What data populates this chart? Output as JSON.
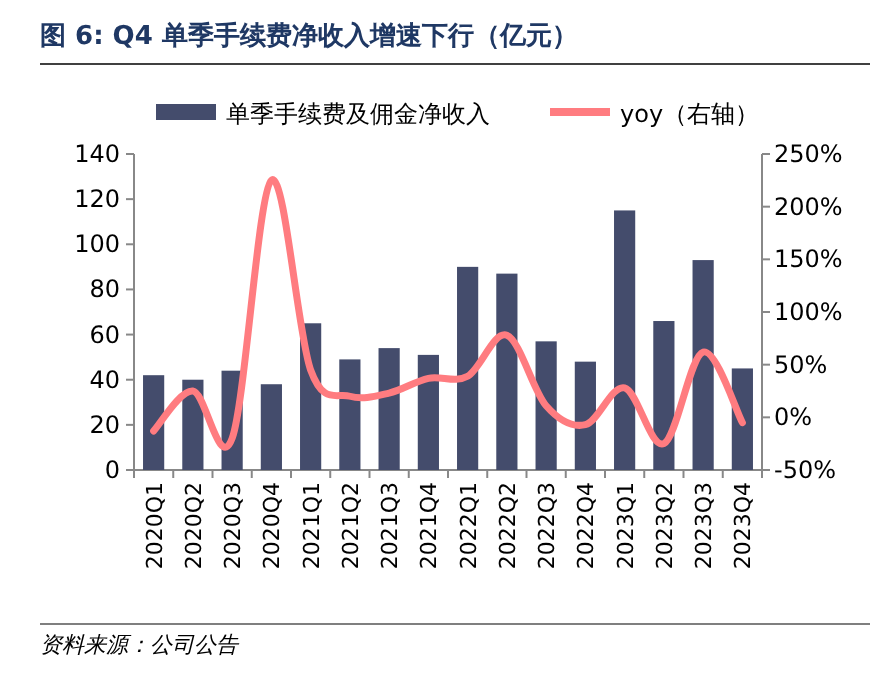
{
  "chart_data": {
    "type": "bar",
    "title": "图 6:  Q4 单季手续费净收入增速下行（亿元）",
    "categories": [
      "2020Q1",
      "2020Q2",
      "2020Q3",
      "2020Q4",
      "2021Q1",
      "2021Q2",
      "2021Q3",
      "2021Q4",
      "2022Q1",
      "2022Q2",
      "2022Q3",
      "2022Q4",
      "2023Q1",
      "2023Q2",
      "2023Q3",
      "2023Q4"
    ],
    "series": [
      {
        "name": "单季手续费及佣金净收入",
        "color": "#444c6c",
        "values": [
          42,
          40,
          44,
          38,
          65,
          49,
          54,
          51,
          90,
          87,
          57,
          48,
          115,
          66,
          93,
          45
        ]
      },
      {
        "name": "yoy（右轴）",
        "type": "line",
        "axis": "y2",
        "color": "#ff7c80",
        "values": [
          -13,
          25,
          -20,
          225,
          45,
          20,
          23,
          37,
          39,
          78,
          11,
          -7,
          28,
          -25,
          62,
          -5
        ]
      }
    ],
    "ylim": [
      0,
      140
    ],
    "yticks": [
      0,
      20,
      40,
      60,
      80,
      100,
      120,
      140
    ],
    "y2lim": [
      -50,
      250
    ],
    "y2ticks": [
      {
        "value": -50,
        "label": "-50%"
      },
      {
        "value": 0,
        "label": "0%"
      },
      {
        "value": 50,
        "label": "50%"
      },
      {
        "value": 100,
        "label": "100%"
      },
      {
        "value": 150,
        "label": "150%"
      },
      {
        "value": 200,
        "label": "200%"
      },
      {
        "value": 250,
        "label": "250%"
      }
    ],
    "legend": "top",
    "annotations": [
      "资料来源：公司公告"
    ]
  }
}
